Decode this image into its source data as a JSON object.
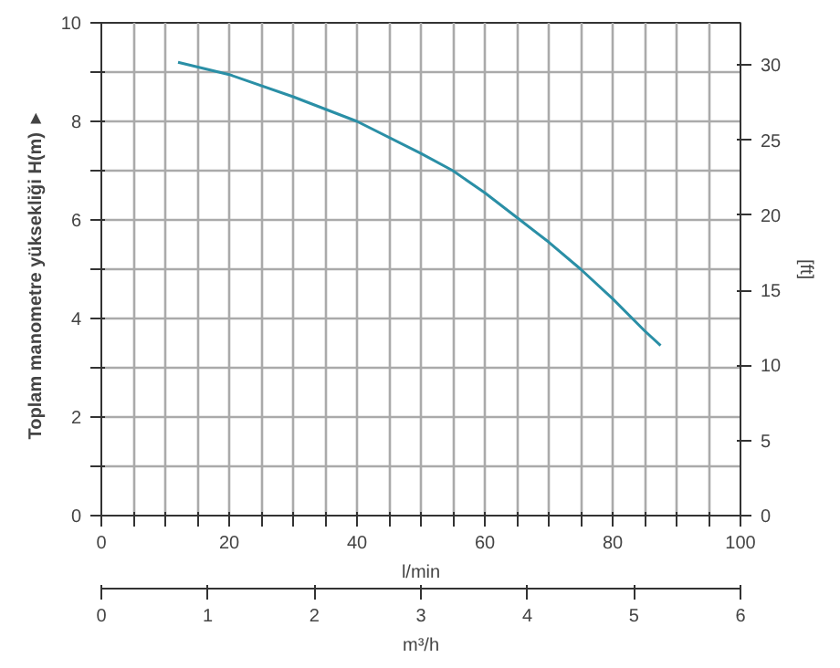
{
  "chart_data": {
    "type": "line",
    "ylabel": "Toplam manometre yüksekliği  H(m)  ►",
    "xlabel": "l/min",
    "x2label": "m³/h",
    "y2label": "[ft]",
    "xlim": [
      0,
      100
    ],
    "ylim": [
      0,
      10
    ],
    "y2lim": [
      0,
      32.81
    ],
    "x2lim": [
      0,
      6
    ],
    "xticks": [
      0,
      {
        "value": 5,
        "label": null
      },
      {
        "value": 10,
        "label": null
      },
      {
        "value": 15,
        "label": null
      },
      20,
      {
        "value": 25,
        "label": null
      },
      {
        "value": 30,
        "label": null
      },
      {
        "value": 35,
        "label": null
      },
      40,
      {
        "value": 45,
        "label": null
      },
      {
        "value": 50,
        "label": null
      },
      {
        "value": 55,
        "label": null
      },
      60,
      {
        "value": 65,
        "label": null
      },
      {
        "value": 70,
        "label": null
      },
      {
        "value": 75,
        "label": null
      },
      80,
      {
        "value": 85,
        "label": null
      },
      {
        "value": 90,
        "label": null
      },
      {
        "value": 95,
        "label": null
      },
      100
    ],
    "yticks": [
      0,
      {
        "value": 1,
        "label": null
      },
      2,
      {
        "value": 3,
        "label": null
      },
      4,
      {
        "value": 5,
        "label": null
      },
      6,
      {
        "value": 7,
        "label": null
      },
      8,
      {
        "value": 9,
        "label": null
      },
      10
    ],
    "y2ticks": [
      0,
      5,
      10,
      15,
      20,
      25,
      30
    ],
    "x2ticks": [
      0,
      1,
      2,
      3,
      4,
      5,
      6
    ],
    "grid": true,
    "marker": "none",
    "line_style": "solid",
    "series": [
      {
        "color": "#2a8fa6",
        "x": [
          12,
          20,
          30,
          40,
          50,
          55,
          60,
          65,
          70,
          75,
          80,
          85,
          87.5
        ],
        "values": [
          9.2,
          8.95,
          8.5,
          8.0,
          7.35,
          7.0,
          6.55,
          6.05,
          5.55,
          5.0,
          4.4,
          3.75,
          3.45
        ]
      }
    ]
  }
}
